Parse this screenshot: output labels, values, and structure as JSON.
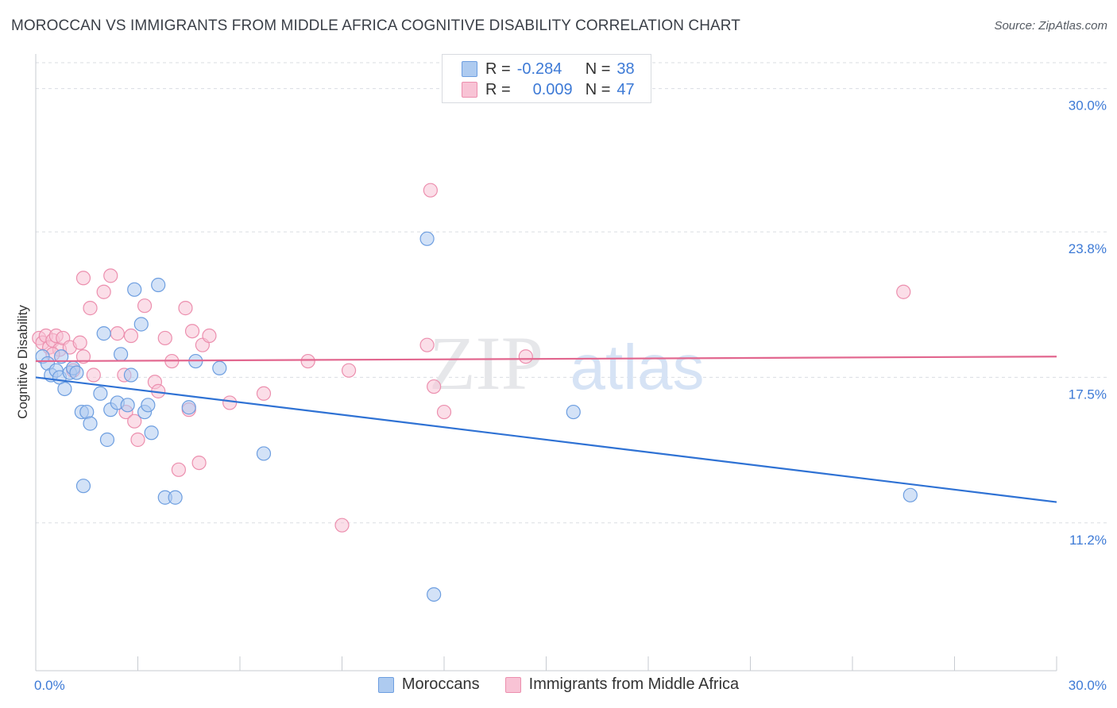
{
  "title": "MOROCCAN VS IMMIGRANTS FROM MIDDLE AFRICA COGNITIVE DISABILITY CORRELATION CHART",
  "source": "Source: ZipAtlas.com",
  "watermark": {
    "zip": "ZIP",
    "atlas": "atlas"
  },
  "legend": {
    "row1": {
      "r_label": "R =",
      "r_value": "-0.284",
      "n_label": "N =",
      "n_value": "38"
    },
    "row2": {
      "r_label": "R =",
      "r_value": "0.009",
      "n_label": "N =",
      "n_value": "47"
    }
  },
  "colors": {
    "blue_fill": "#aecbf0",
    "blue_stroke": "#6d9ee0",
    "blue_line": "#2f72d4",
    "pink_fill": "#f8c3d5",
    "pink_stroke": "#ec8fae",
    "pink_line": "#e2678f",
    "axis_text": "#3d7ad6",
    "grid": "#dadde2"
  },
  "chart_data": {
    "type": "scatter",
    "title": "MOROCCAN VS IMMIGRANTS FROM MIDDLE AFRICA COGNITIVE DISABILITY CORRELATION CHART",
    "xlabel": "",
    "ylabel": "Cognitive Disability",
    "xlim": [
      0,
      30
    ],
    "ylim": [
      4.8,
      31.5
    ],
    "x_tick_labels": [
      "0.0%",
      "30.0%"
    ],
    "y_ticks": [
      11.2,
      17.5,
      23.8,
      30.0
    ],
    "y_tick_labels": [
      "11.2%",
      "17.5%",
      "23.8%",
      "30.0%"
    ],
    "series": [
      {
        "name": "Moroccans",
        "r": -0.284,
        "n": 38,
        "trend": {
          "x": [
            0,
            30
          ],
          "y": [
            17.5,
            12.1
          ]
        },
        "points": [
          [
            0.2,
            18.4
          ],
          [
            0.35,
            18.1
          ],
          [
            0.45,
            17.6
          ],
          [
            0.6,
            17.8
          ],
          [
            0.7,
            17.5
          ],
          [
            0.75,
            18.4
          ],
          [
            0.85,
            17.0
          ],
          [
            1.0,
            17.7
          ],
          [
            1.1,
            17.9
          ],
          [
            1.2,
            17.7
          ],
          [
            1.35,
            16.0
          ],
          [
            1.5,
            16.0
          ],
          [
            1.6,
            15.5
          ],
          [
            1.9,
            16.8
          ],
          [
            2.0,
            19.4
          ],
          [
            2.1,
            14.8
          ],
          [
            2.2,
            16.1
          ],
          [
            2.4,
            16.4
          ],
          [
            2.5,
            18.5
          ],
          [
            2.7,
            16.3
          ],
          [
            2.8,
            17.6
          ],
          [
            2.9,
            21.3
          ],
          [
            3.1,
            19.8
          ],
          [
            3.2,
            16.0
          ],
          [
            3.3,
            16.3
          ],
          [
            3.4,
            15.1
          ],
          [
            3.6,
            21.5
          ],
          [
            3.8,
            12.3
          ],
          [
            4.1,
            12.3
          ],
          [
            4.5,
            16.2
          ],
          [
            4.7,
            18.2
          ],
          [
            5.4,
            17.9
          ],
          [
            6.7,
            14.2
          ],
          [
            1.4,
            12.8
          ],
          [
            11.5,
            23.5
          ],
          [
            11.7,
            8.1
          ],
          [
            15.8,
            16.0
          ],
          [
            25.7,
            12.4
          ]
        ]
      },
      {
        "name": "Immigrants from Middle Africa",
        "r": 0.009,
        "n": 47,
        "trend": {
          "x": [
            0,
            30
          ],
          "y": [
            18.2,
            18.4
          ]
        },
        "points": [
          [
            0.1,
            19.2
          ],
          [
            0.2,
            19.0
          ],
          [
            0.3,
            19.3
          ],
          [
            0.4,
            18.8
          ],
          [
            0.5,
            19.1
          ],
          [
            0.6,
            19.3
          ],
          [
            0.7,
            18.7
          ],
          [
            0.8,
            19.2
          ],
          [
            1.0,
            18.8
          ],
          [
            1.1,
            17.8
          ],
          [
            1.3,
            19.0
          ],
          [
            1.4,
            18.4
          ],
          [
            1.6,
            20.5
          ],
          [
            1.7,
            17.6
          ],
          [
            1.4,
            21.8
          ],
          [
            2.0,
            21.2
          ],
          [
            2.2,
            21.9
          ],
          [
            2.4,
            19.4
          ],
          [
            2.6,
            17.6
          ],
          [
            2.65,
            16.0
          ],
          [
            2.8,
            19.3
          ],
          [
            2.9,
            15.6
          ],
          [
            3.0,
            14.8
          ],
          [
            3.2,
            20.6
          ],
          [
            3.5,
            17.3
          ],
          [
            3.6,
            16.9
          ],
          [
            3.8,
            19.2
          ],
          [
            4.0,
            18.2
          ],
          [
            4.2,
            13.5
          ],
          [
            4.4,
            20.5
          ],
          [
            4.5,
            16.1
          ],
          [
            4.6,
            19.5
          ],
          [
            4.8,
            13.8
          ],
          [
            4.9,
            18.9
          ],
          [
            5.1,
            19.3
          ],
          [
            5.7,
            16.4
          ],
          [
            6.7,
            16.8
          ],
          [
            8.0,
            18.2
          ],
          [
            9.0,
            11.1
          ],
          [
            9.2,
            17.8
          ],
          [
            11.6,
            25.6
          ],
          [
            11.5,
            18.9
          ],
          [
            11.7,
            17.1
          ],
          [
            12.0,
            16.0
          ],
          [
            14.4,
            18.4
          ],
          [
            25.5,
            21.2
          ],
          [
            0.5,
            18.5
          ]
        ]
      }
    ]
  },
  "bottom_legend": [
    "Moroccans",
    "Immigrants from Middle Africa"
  ]
}
